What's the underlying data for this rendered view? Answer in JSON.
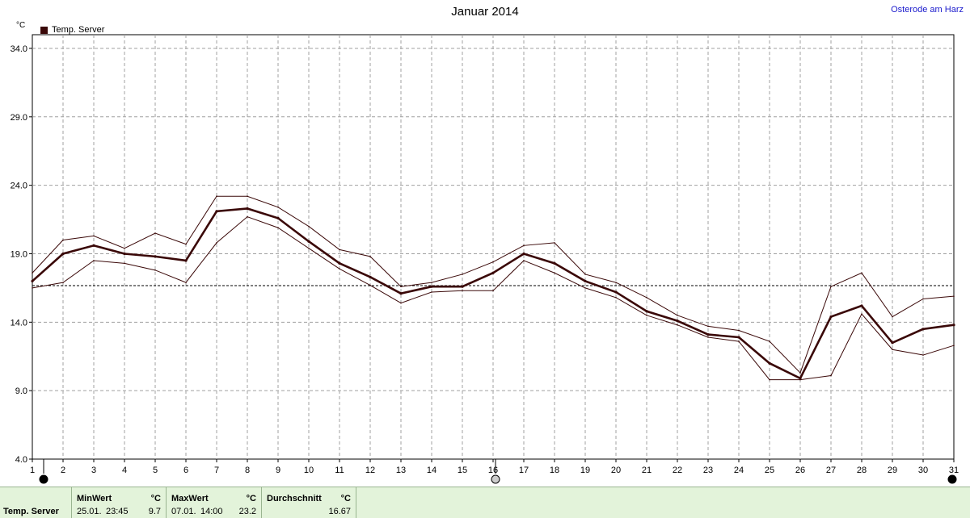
{
  "title": "Januar 2014",
  "location": "Osterode am Harz",
  "unit": "°C",
  "legend": {
    "label": "Temp. Server",
    "color": "#3a0808"
  },
  "chart_data": {
    "type": "line",
    "title": "Januar 2014",
    "ylabel": "°C",
    "ylim": [
      4.0,
      35.0
    ],
    "yticks": [
      "4.0",
      "9.0",
      "14.0",
      "19.0",
      "24.0",
      "29.0",
      "34.0"
    ],
    "x": [
      1,
      2,
      3,
      4,
      5,
      6,
      7,
      8,
      9,
      10,
      11,
      12,
      13,
      14,
      15,
      16,
      17,
      18,
      19,
      20,
      21,
      22,
      23,
      24,
      25,
      26,
      27,
      28,
      29,
      30,
      31
    ],
    "series": [
      {
        "name": "Temp. Server",
        "role": "mean",
        "values": [
          17.0,
          19.0,
          19.6,
          19.0,
          18.8,
          18.5,
          22.1,
          22.3,
          21.6,
          19.9,
          18.3,
          17.3,
          16.1,
          16.6,
          16.6,
          17.6,
          19.0,
          18.3,
          17.0,
          16.2,
          14.8,
          14.1,
          13.1,
          12.9,
          11.0,
          9.9,
          14.4,
          15.2,
          12.5,
          13.5,
          13.8
        ]
      },
      {
        "role": "max",
        "values": [
          17.6,
          20.0,
          20.3,
          19.4,
          20.5,
          19.7,
          23.2,
          23.2,
          22.4,
          21.0,
          19.3,
          18.8,
          16.6,
          16.9,
          17.5,
          18.4,
          19.6,
          19.8,
          17.5,
          16.9,
          15.8,
          14.5,
          13.7,
          13.4,
          12.6,
          10.3,
          16.6,
          17.6,
          14.4,
          15.7,
          15.9
        ]
      },
      {
        "role": "min",
        "values": [
          16.5,
          16.9,
          18.5,
          18.3,
          17.8,
          16.9,
          19.8,
          21.7,
          20.9,
          19.4,
          17.9,
          16.7,
          15.4,
          16.2,
          16.3,
          16.3,
          18.5,
          17.6,
          16.5,
          15.8,
          14.5,
          13.8,
          12.9,
          12.6,
          9.8,
          9.8,
          10.1,
          14.6,
          12.0,
          11.6,
          12.3
        ]
      }
    ],
    "reference_line": {
      "value": 16.67
    },
    "grid": true
  },
  "stats": {
    "row_label": "Temp. Server",
    "min": {
      "header": "MinWert",
      "unit": "°C",
      "date": "25.01.",
      "time": "23:45",
      "value": "9.7"
    },
    "max": {
      "header": "MaxWert",
      "unit": "°C",
      "date": "07.01.",
      "time": "14:00",
      "value": "23.2"
    },
    "avg": {
      "header": "Durchschnitt",
      "unit": "°C",
      "value": "16.67"
    }
  }
}
